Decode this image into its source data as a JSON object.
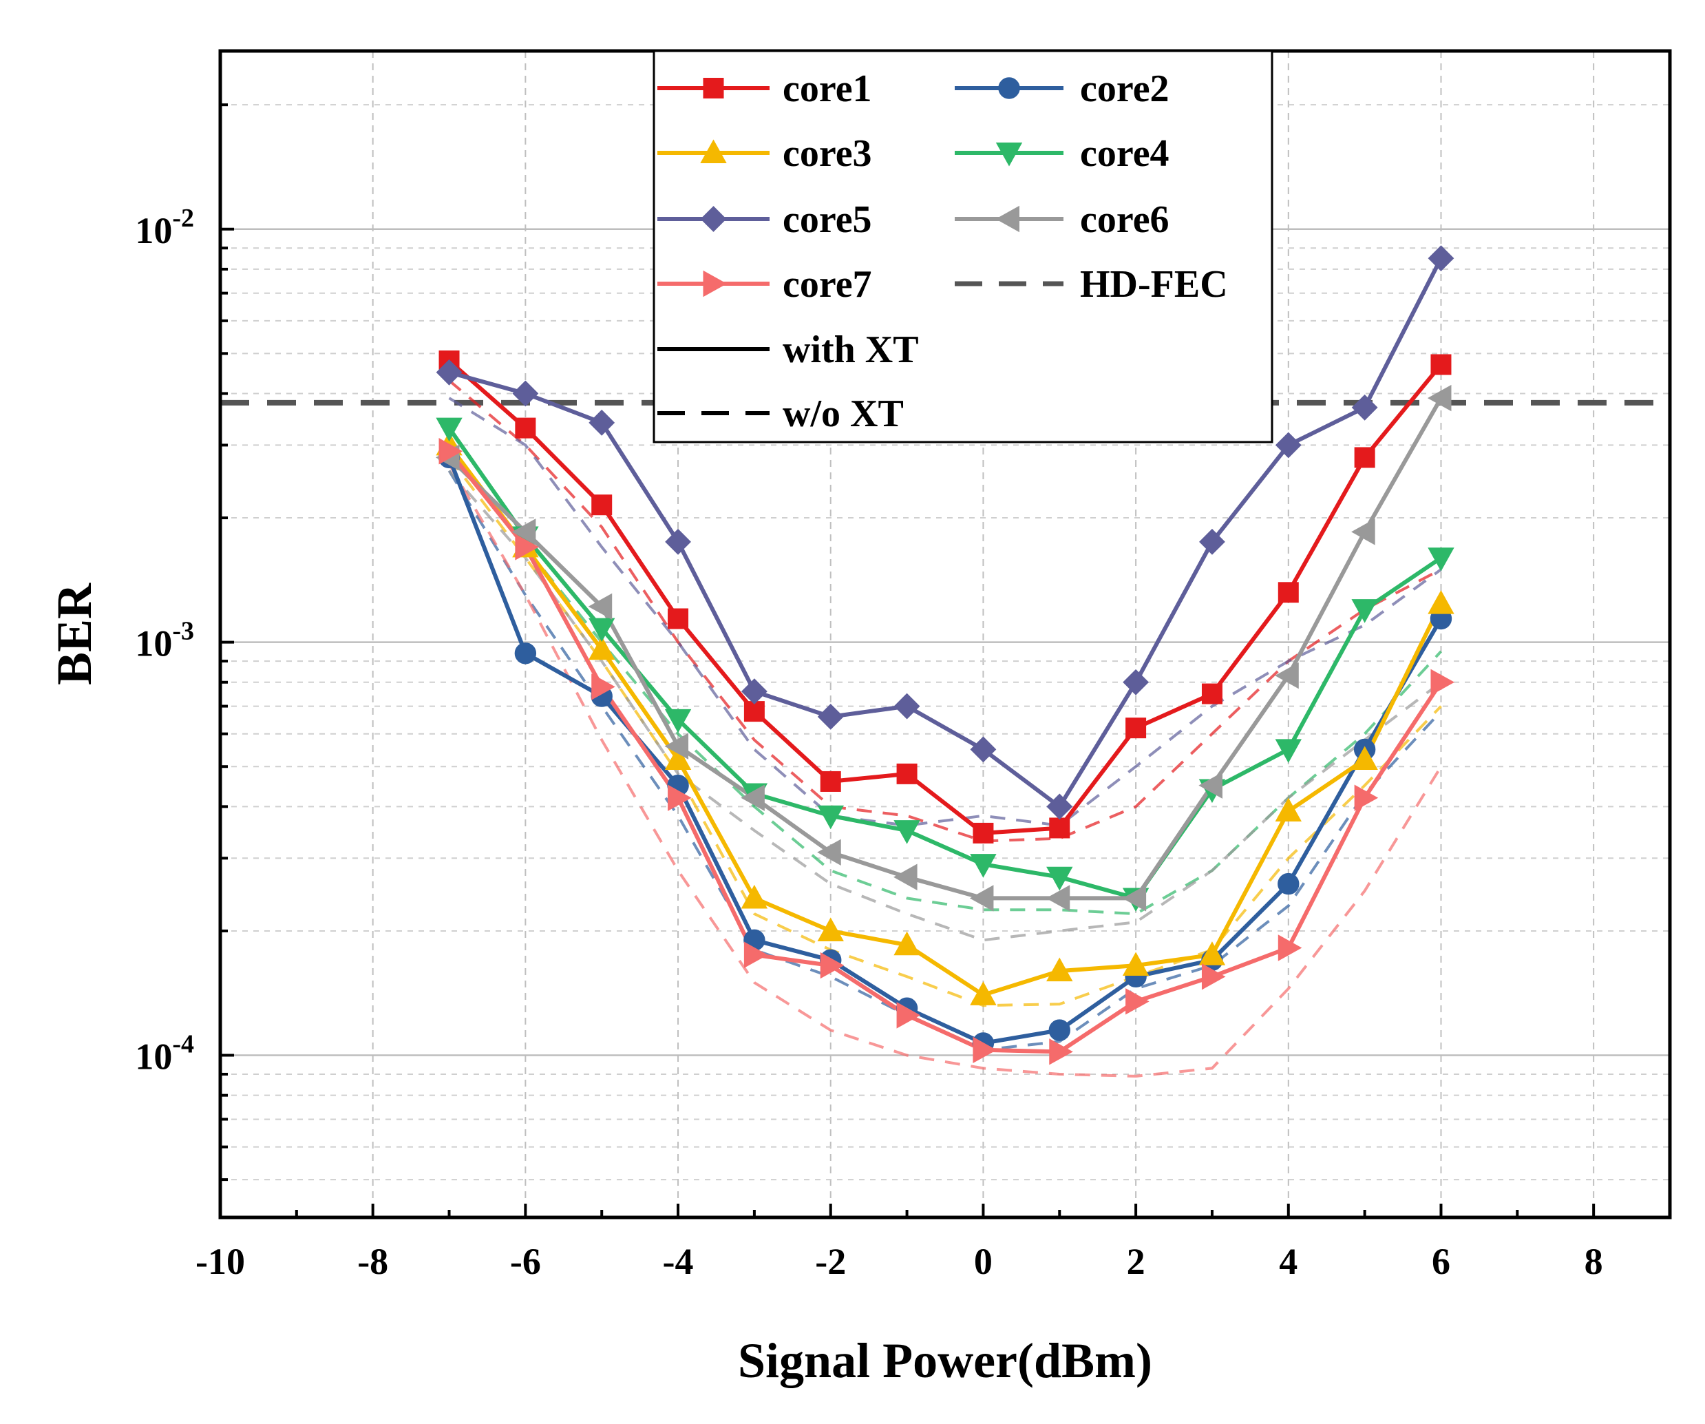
{
  "chart_data": {
    "type": "line",
    "title": "",
    "xlabel": "Signal Power(dBm)",
    "ylabel": "BER",
    "xlim": [
      -10,
      9
    ],
    "ylim": [
      4.05e-05,
      0.027
    ],
    "yscale": "log",
    "grid": true,
    "legend_position": "top-center",
    "x_ticks": [
      -10,
      -8,
      -6,
      -4,
      -2,
      0,
      2,
      4,
      6,
      8
    ],
    "x_tick_labels": [
      "-10",
      "-8",
      "-6",
      "-4",
      "-2",
      "0",
      "2",
      "4",
      "6",
      "8"
    ],
    "y_ticks": [
      0.0001,
      0.001,
      0.01
    ],
    "y_tick_labels": [
      {
        "base": "10",
        "exp": "-4"
      },
      {
        "base": "10",
        "exp": "-3"
      },
      {
        "base": "10",
        "exp": "-2"
      }
    ],
    "x": [
      -7,
      -6,
      -5,
      -4,
      -3,
      -2,
      -1,
      0,
      1,
      2,
      3,
      4,
      5,
      6
    ],
    "hd_fec": {
      "name": "HD-FEC",
      "value": 0.0038,
      "color": "#555555"
    },
    "line_styles": [
      {
        "name": "with XT",
        "style": "solid"
      },
      {
        "name": "w/o XT",
        "style": "dashed"
      }
    ],
    "series": [
      {
        "name": "core1",
        "color": "#e41a1c",
        "marker": "square",
        "values": [
          0.0048,
          0.0033,
          0.00215,
          0.00114,
          0.00068,
          0.00046,
          0.00048,
          0.000345,
          0.000355,
          0.00062,
          0.00075,
          0.00132,
          0.0028,
          0.0047
        ],
        "values_wo_xt": [
          0.0043,
          0.003,
          0.0019,
          0.001,
          0.00058,
          0.0004,
          0.00038,
          0.00033,
          0.000335,
          0.0004,
          0.0006,
          0.0009,
          0.0012,
          0.0015
        ]
      },
      {
        "name": "core2",
        "color": "#2e5e9e",
        "marker": "circle",
        "values": [
          0.0028,
          0.00094,
          0.00074,
          0.00045,
          0.00019,
          0.00017,
          0.00013,
          0.000107,
          0.000115,
          0.000155,
          0.00017,
          0.00026,
          0.00055,
          0.00114
        ],
        "values_wo_xt": [
          0.0026,
          0.0013,
          0.0007,
          0.00038,
          0.00018,
          0.000155,
          0.000125,
          0.000103,
          0.000108,
          0.000145,
          0.000165,
          0.00023,
          0.00043,
          0.00068
        ]
      },
      {
        "name": "core3",
        "color": "#f5b800",
        "marker": "triangle-up",
        "values": [
          0.003,
          0.0017,
          0.00096,
          0.00052,
          0.00024,
          0.0002,
          0.000185,
          0.00014,
          0.00016,
          0.000165,
          0.000175,
          0.00039,
          0.00052,
          0.00124
        ],
        "values_wo_xt": [
          0.0028,
          0.0016,
          0.0009,
          0.00048,
          0.00022,
          0.00018,
          0.000155,
          0.000132,
          0.000133,
          0.000155,
          0.00018,
          0.0003,
          0.00045,
          0.0007
        ]
      },
      {
        "name": "core4",
        "color": "#2db868",
        "marker": "triangle-down",
        "values": [
          0.0033,
          0.0018,
          0.00108,
          0.00065,
          0.00043,
          0.00038,
          0.00035,
          0.00029,
          0.00027,
          0.00024,
          0.00044,
          0.00055,
          0.0012,
          0.0016
        ],
        "values_wo_xt": [
          0.003,
          0.0017,
          0.001,
          0.0006,
          0.0004,
          0.00028,
          0.00024,
          0.000225,
          0.000225,
          0.00022,
          0.00028,
          0.00042,
          0.0006,
          0.00095
        ]
      },
      {
        "name": "core5",
        "color": "#5e5e9a",
        "marker": "diamond",
        "values": [
          0.0045,
          0.004,
          0.0034,
          0.00175,
          0.00076,
          0.00066,
          0.0007,
          0.00055,
          0.0004,
          0.0008,
          0.00175,
          0.003,
          0.0037,
          0.0085
        ],
        "values_wo_xt": [
          0.0039,
          0.003,
          0.0017,
          0.001,
          0.00055,
          0.00038,
          0.00036,
          0.00038,
          0.00036,
          0.0005,
          0.0007,
          0.0009,
          0.0011,
          0.0015
        ]
      },
      {
        "name": "core6",
        "color": "#999999",
        "marker": "triangle-left",
        "values": [
          0.0028,
          0.00185,
          0.00122,
          0.00056,
          0.00042,
          0.00031,
          0.00027,
          0.00024,
          0.00024,
          0.00024,
          0.00045,
          0.00083,
          0.00185,
          0.0039
        ],
        "values_wo_xt": [
          0.0026,
          0.0016,
          0.0009,
          0.00048,
          0.00035,
          0.00026,
          0.00022,
          0.00019,
          0.0002,
          0.00021,
          0.00028,
          0.00042,
          0.00058,
          0.0008
        ]
      },
      {
        "name": "core7",
        "color": "#f56b6b",
        "marker": "triangle-right",
        "values": [
          0.0029,
          0.0017,
          0.00078,
          0.00042,
          0.000175,
          0.000165,
          0.000125,
          0.000103,
          0.000102,
          0.000135,
          0.000155,
          0.000182,
          0.00042,
          0.0008
        ],
        "values_wo_xt": [
          0.0027,
          0.0013,
          0.00058,
          0.00028,
          0.00015,
          0.000115,
          0.0001,
          9.3e-05,
          9e-05,
          8.9e-05,
          9.3e-05,
          0.000145,
          0.00025,
          0.0005
        ]
      }
    ]
  }
}
